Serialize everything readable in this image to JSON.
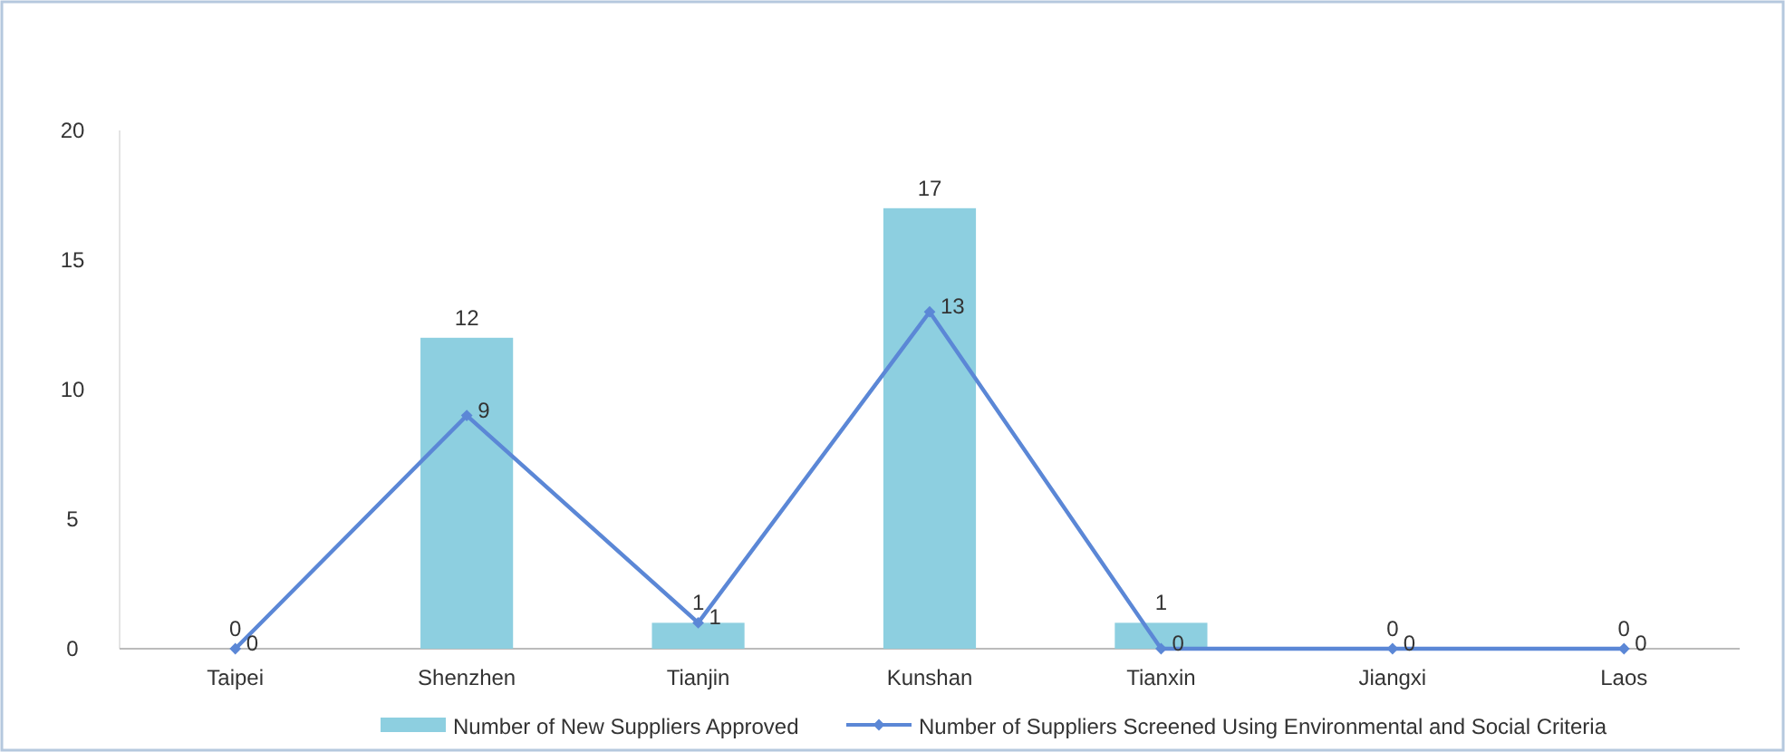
{
  "chart_data": {
    "type": "bar",
    "categories": [
      "Taipei",
      "Shenzhen",
      "Tianjin",
      "Kunshan",
      "Tianxin",
      "Jiangxi",
      "Laos"
    ],
    "series": [
      {
        "name": "Number of New Suppliers Approved",
        "color": "#8dcfe0",
        "values": [
          0,
          12,
          1,
          17,
          1,
          0,
          0
        ]
      },
      {
        "name": "Number of Suppliers Screened Using Environmental and Social Criteria",
        "type": "line",
        "color": "#5b87d6",
        "values": [
          0,
          9,
          1,
          13,
          0,
          0,
          0
        ]
      }
    ],
    "ylim": [
      0,
      20
    ],
    "yticks": [
      0,
      5,
      10,
      15,
      20
    ],
    "grid": false,
    "legend": "bottom",
    "data_labels": true,
    "marker": "diamond",
    "line_style": "solid"
  }
}
